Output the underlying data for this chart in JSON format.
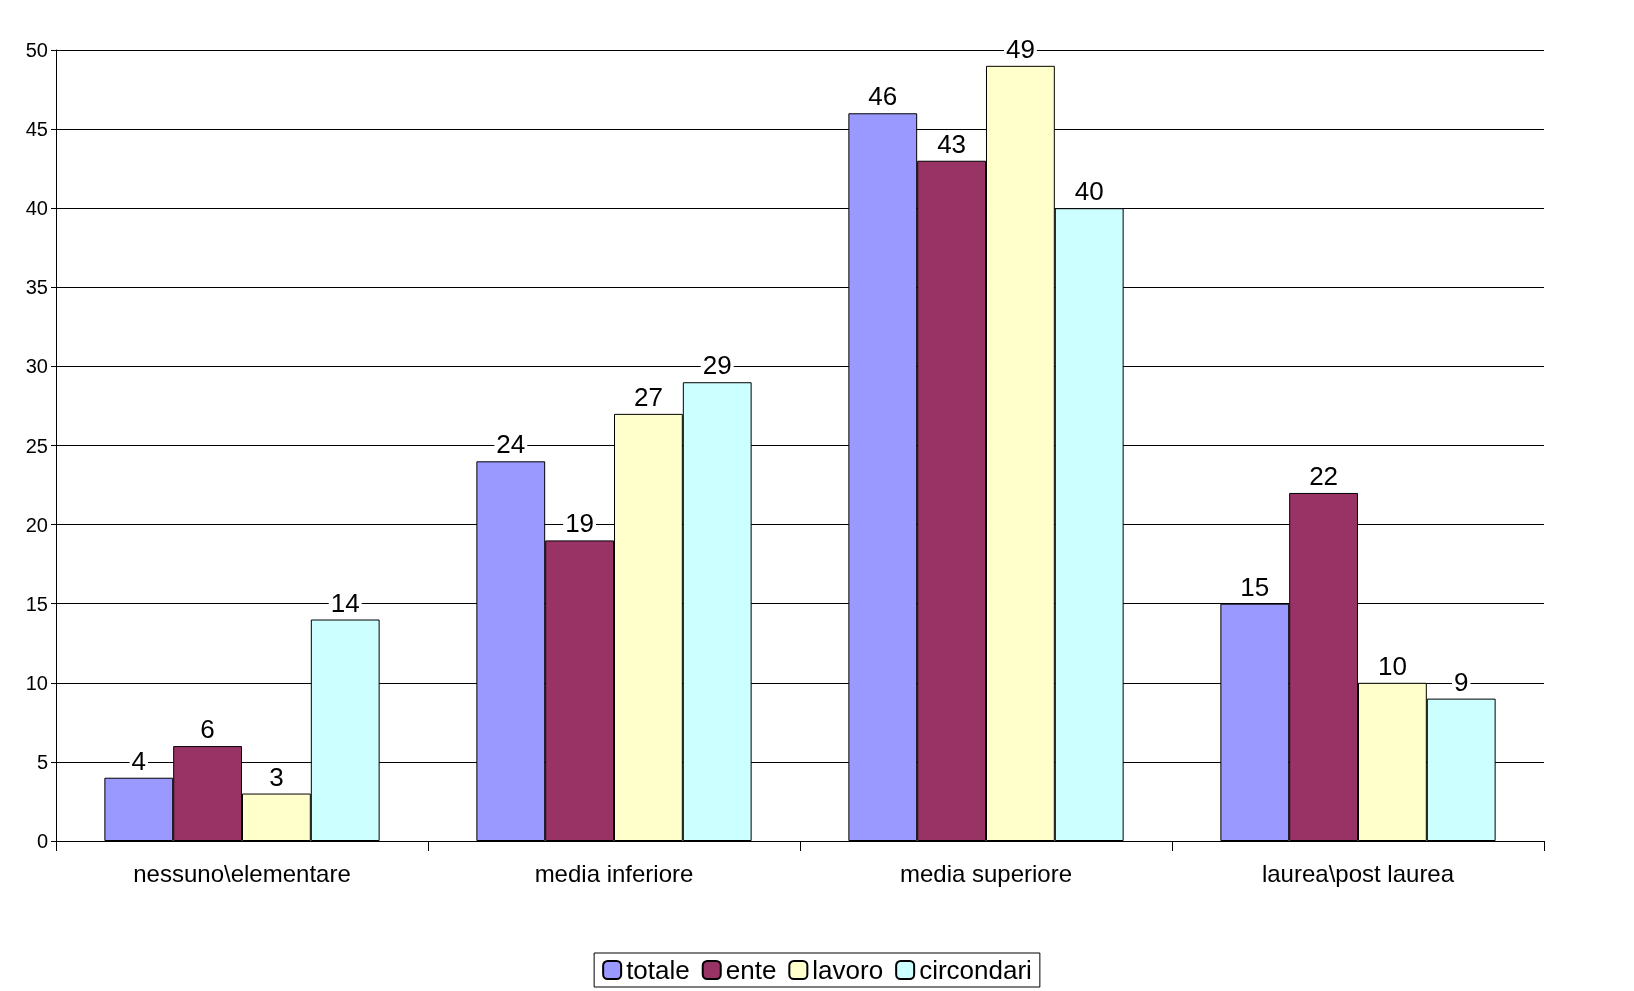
{
  "chart_data": {
    "type": "bar",
    "categories": [
      "nessuno\\elementare",
      "media inferiore",
      "media superiore",
      "laurea\\post laurea"
    ],
    "series": [
      {
        "name": "totale",
        "color": "#9999ff",
        "values": [
          4,
          24,
          46,
          15
        ]
      },
      {
        "name": "ente",
        "color": "#993366",
        "values": [
          6,
          19,
          43,
          22
        ]
      },
      {
        "name": "lavoro",
        "color": "#ffffcc",
        "values": [
          3,
          27,
          49,
          10
        ]
      },
      {
        "name": "circondari",
        "color": "#ccffff",
        "values": [
          14,
          29,
          40,
          9
        ]
      }
    ],
    "ylim": [
      0,
      50
    ],
    "yticks": [
      0,
      5,
      10,
      15,
      20,
      25,
      30,
      35,
      40,
      45,
      50
    ],
    "grid": "y",
    "legend": "bottom",
    "data_labels": true
  }
}
